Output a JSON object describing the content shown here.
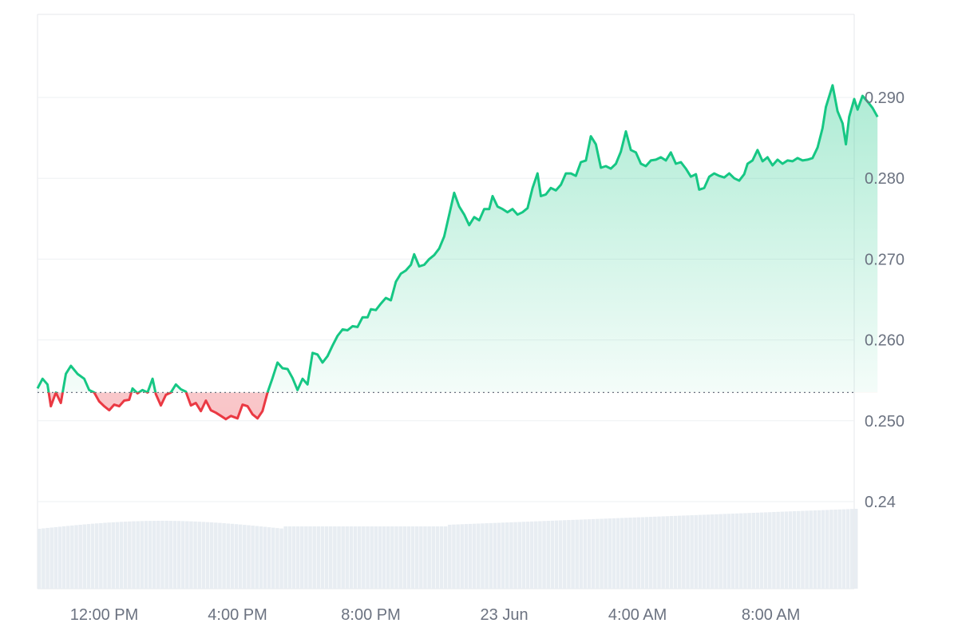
{
  "chart_data": {
    "type": "area",
    "baseline": 0.2535,
    "colors": {
      "up": "#16c784",
      "down": "#ea3943",
      "grid": "#eef0f3",
      "volume": "#e8edf2",
      "axis_text": "#6b7280"
    },
    "y_ticks": [
      {
        "value": 0.29,
        "label": "0.290"
      },
      {
        "value": 0.28,
        "label": "0.280"
      },
      {
        "value": 0.27,
        "label": "0.270"
      },
      {
        "value": 0.26,
        "label": "0.260"
      },
      {
        "value": 0.25,
        "label": "0.250"
      },
      {
        "value": 0.24,
        "label": "0.24"
      }
    ],
    "x_ticks": [
      {
        "t": 1.0,
        "label": "12:00 PM"
      },
      {
        "t": 5.0,
        "label": "4:00 PM"
      },
      {
        "t": 9.0,
        "label": "8:00 PM"
      },
      {
        "t": 13.0,
        "label": "23 Jun"
      },
      {
        "t": 17.0,
        "label": "4:00 AM"
      },
      {
        "t": 21.0,
        "label": "8:00 AM"
      }
    ],
    "t_range": [
      -1.0,
      23.5
    ],
    "y_range": [
      0.24,
      0.2995
    ],
    "price": [
      [
        -1.0,
        0.254
      ],
      [
        -0.85,
        0.2552
      ],
      [
        -0.7,
        0.2545
      ],
      [
        -0.6,
        0.2518
      ],
      [
        -0.45,
        0.2535
      ],
      [
        -0.3,
        0.2522
      ],
      [
        -0.15,
        0.2558
      ],
      [
        0.0,
        0.2568
      ],
      [
        0.2,
        0.2558
      ],
      [
        0.4,
        0.2552
      ],
      [
        0.55,
        0.2538
      ],
      [
        0.7,
        0.2535
      ],
      [
        0.85,
        0.2524
      ],
      [
        1.0,
        0.2518
      ],
      [
        1.15,
        0.2513
      ],
      [
        1.3,
        0.252
      ],
      [
        1.45,
        0.2518
      ],
      [
        1.6,
        0.2525
      ],
      [
        1.75,
        0.2526
      ],
      [
        1.85,
        0.254
      ],
      [
        2.0,
        0.2534
      ],
      [
        2.15,
        0.2538
      ],
      [
        2.3,
        0.2535
      ],
      [
        2.45,
        0.2552
      ],
      [
        2.55,
        0.2533
      ],
      [
        2.7,
        0.2519
      ],
      [
        2.85,
        0.2532
      ],
      [
        3.0,
        0.2535
      ],
      [
        3.15,
        0.2545
      ],
      [
        3.3,
        0.2539
      ],
      [
        3.45,
        0.2536
      ],
      [
        3.6,
        0.2519
      ],
      [
        3.75,
        0.2522
      ],
      [
        3.9,
        0.2512
      ],
      [
        4.05,
        0.2525
      ],
      [
        4.2,
        0.2513
      ],
      [
        4.35,
        0.251
      ],
      [
        4.5,
        0.2506
      ],
      [
        4.65,
        0.2502
      ],
      [
        4.8,
        0.2506
      ],
      [
        5.0,
        0.2503
      ],
      [
        5.15,
        0.252
      ],
      [
        5.3,
        0.2518
      ],
      [
        5.45,
        0.2508
      ],
      [
        5.6,
        0.2503
      ],
      [
        5.75,
        0.2512
      ],
      [
        5.9,
        0.2535
      ],
      [
        6.05,
        0.2553
      ],
      [
        6.2,
        0.2572
      ],
      [
        6.35,
        0.2565
      ],
      [
        6.5,
        0.2564
      ],
      [
        6.65,
        0.2553
      ],
      [
        6.8,
        0.2538
      ],
      [
        6.95,
        0.2552
      ],
      [
        7.1,
        0.2545
      ],
      [
        7.25,
        0.2584
      ],
      [
        7.4,
        0.2582
      ],
      [
        7.55,
        0.2572
      ],
      [
        7.7,
        0.258
      ],
      [
        7.85,
        0.2593
      ],
      [
        8.0,
        0.2605
      ],
      [
        8.15,
        0.2613
      ],
      [
        8.3,
        0.2612
      ],
      [
        8.45,
        0.2617
      ],
      [
        8.6,
        0.2616
      ],
      [
        8.75,
        0.2628
      ],
      [
        8.9,
        0.2628
      ],
      [
        9.0,
        0.2638
      ],
      [
        9.15,
        0.2637
      ],
      [
        9.3,
        0.2645
      ],
      [
        9.45,
        0.2652
      ],
      [
        9.6,
        0.2649
      ],
      [
        9.75,
        0.2672
      ],
      [
        9.9,
        0.2682
      ],
      [
        10.05,
        0.2686
      ],
      [
        10.2,
        0.2693
      ],
      [
        10.3,
        0.2706
      ],
      [
        10.45,
        0.2691
      ],
      [
        10.6,
        0.2693
      ],
      [
        10.75,
        0.27
      ],
      [
        10.9,
        0.2705
      ],
      [
        11.05,
        0.2713
      ],
      [
        11.2,
        0.2728
      ],
      [
        11.35,
        0.2755
      ],
      [
        11.5,
        0.2782
      ],
      [
        11.65,
        0.2765
      ],
      [
        11.8,
        0.2755
      ],
      [
        11.95,
        0.2742
      ],
      [
        12.1,
        0.2752
      ],
      [
        12.25,
        0.2748
      ],
      [
        12.4,
        0.2762
      ],
      [
        12.55,
        0.2762
      ],
      [
        12.65,
        0.2778
      ],
      [
        12.8,
        0.2765
      ],
      [
        12.95,
        0.2762
      ],
      [
        13.1,
        0.2758
      ],
      [
        13.25,
        0.2762
      ],
      [
        13.4,
        0.2755
      ],
      [
        13.55,
        0.2758
      ],
      [
        13.7,
        0.2763
      ],
      [
        13.85,
        0.2788
      ],
      [
        14.0,
        0.2806
      ],
      [
        14.1,
        0.2778
      ],
      [
        14.25,
        0.278
      ],
      [
        14.4,
        0.2788
      ],
      [
        14.55,
        0.2785
      ],
      [
        14.7,
        0.2792
      ],
      [
        14.85,
        0.2806
      ],
      [
        15.0,
        0.2806
      ],
      [
        15.15,
        0.2803
      ],
      [
        15.3,
        0.282
      ],
      [
        15.45,
        0.2822
      ],
      [
        15.6,
        0.2852
      ],
      [
        15.75,
        0.2842
      ],
      [
        15.9,
        0.2813
      ],
      [
        16.05,
        0.2815
      ],
      [
        16.2,
        0.2812
      ],
      [
        16.35,
        0.2818
      ],
      [
        16.5,
        0.2833
      ],
      [
        16.65,
        0.2858
      ],
      [
        16.8,
        0.2835
      ],
      [
        16.95,
        0.2832
      ],
      [
        17.1,
        0.2818
      ],
      [
        17.25,
        0.2815
      ],
      [
        17.4,
        0.2822
      ],
      [
        17.55,
        0.2823
      ],
      [
        17.7,
        0.2826
      ],
      [
        17.85,
        0.2822
      ],
      [
        18.0,
        0.2832
      ],
      [
        18.15,
        0.2818
      ],
      [
        18.3,
        0.282
      ],
      [
        18.45,
        0.2812
      ],
      [
        18.6,
        0.2802
      ],
      [
        18.75,
        0.2805
      ],
      [
        18.85,
        0.2786
      ],
      [
        19.0,
        0.2788
      ],
      [
        19.15,
        0.2802
      ],
      [
        19.3,
        0.2806
      ],
      [
        19.45,
        0.2803
      ],
      [
        19.6,
        0.2801
      ],
      [
        19.75,
        0.2806
      ],
      [
        19.9,
        0.28
      ],
      [
        20.05,
        0.2797
      ],
      [
        20.2,
        0.2805
      ],
      [
        20.3,
        0.2818
      ],
      [
        20.45,
        0.2822
      ],
      [
        20.6,
        0.2835
      ],
      [
        20.75,
        0.2821
      ],
      [
        20.9,
        0.2826
      ],
      [
        21.05,
        0.2816
      ],
      [
        21.2,
        0.2823
      ],
      [
        21.35,
        0.2818
      ],
      [
        21.5,
        0.2822
      ],
      [
        21.65,
        0.2821
      ],
      [
        21.8,
        0.2825
      ],
      [
        21.95,
        0.2822
      ],
      [
        22.1,
        0.2823
      ],
      [
        22.25,
        0.2825
      ],
      [
        22.4,
        0.2838
      ],
      [
        22.55,
        0.2862
      ],
      [
        22.65,
        0.2888
      ],
      [
        22.85,
        0.2915
      ],
      [
        23.0,
        0.2883
      ],
      [
        23.15,
        0.2868
      ],
      [
        23.25,
        0.2842
      ],
      [
        23.35,
        0.2876
      ],
      [
        23.5,
        0.2898
      ],
      [
        23.6,
        0.2885
      ],
      [
        23.75,
        0.2902
      ],
      [
        23.9,
        0.2895
      ],
      [
        24.05,
        0.2887
      ],
      [
        24.2,
        0.2876
      ]
    ]
  }
}
